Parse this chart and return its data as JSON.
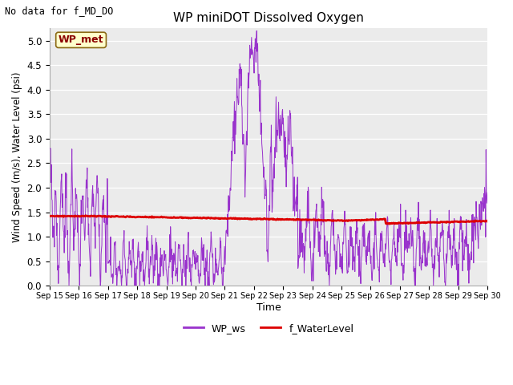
{
  "title": "WP miniDOT Dissolved Oxygen",
  "top_left_text": "No data for f_MD_DO",
  "legend_box_text": "WP_met",
  "xlabel": "Time",
  "ylabel": "Wind Speed (m/s), Water Level (psi)",
  "ylim": [
    0.0,
    5.25
  ],
  "yticks": [
    0.0,
    0.5,
    1.0,
    1.5,
    2.0,
    2.5,
    3.0,
    3.5,
    4.0,
    4.5,
    5.0
  ],
  "bg_color": "#ebebeb",
  "fig_color": "#ffffff",
  "purple_color": "#9933cc",
  "red_color": "#dd0000",
  "legend_labels": [
    "WP_ws",
    "f_WaterLevel"
  ],
  "num_points_ws": 1200,
  "num_points_wl": 600
}
